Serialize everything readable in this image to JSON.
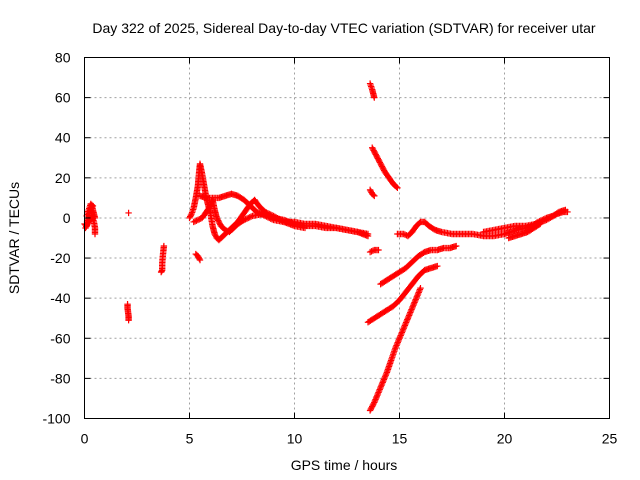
{
  "chart_data": {
    "type": "scatter",
    "title": "Day 322 of 2025, Sidereal Day-to-day VTEC variation (SDTVAR) for receiver utar",
    "xlabel": "GPS time / hours",
    "ylabel": "SDTVAR / TECUs",
    "xlim": [
      0,
      25
    ],
    "ylim": [
      -100,
      80
    ],
    "xticks": [
      0,
      5,
      10,
      15,
      20,
      25
    ],
    "yticks": [
      -100,
      -80,
      -60,
      -40,
      -20,
      0,
      20,
      40,
      60,
      80
    ],
    "grid": true,
    "marker": "+",
    "color": "#ff0000",
    "segments": [
      [
        [
          0.0,
          -3
        ],
        [
          0.1,
          -4
        ],
        [
          0.15,
          -2
        ],
        [
          0.2,
          0
        ],
        [
          0.25,
          3
        ],
        [
          0.3,
          5
        ],
        [
          0.35,
          6
        ],
        [
          0.4,
          4
        ],
        [
          0.45,
          2
        ],
        [
          0.5,
          0
        ]
      ],
      [
        [
          0.05,
          -5
        ],
        [
          0.15,
          -3
        ],
        [
          0.25,
          -1
        ],
        [
          0.35,
          1
        ],
        [
          0.45,
          -2
        ],
        [
          0.5,
          -5
        ],
        [
          0.5,
          -8
        ]
      ],
      [
        [
          0.1,
          1
        ],
        [
          0.2,
          4
        ],
        [
          0.3,
          7
        ],
        [
          0.4,
          6
        ]
      ],
      [
        [
          2.1,
          2.5
        ]
      ],
      [
        [
          2.05,
          -43
        ],
        [
          2.05,
          -45
        ],
        [
          2.1,
          -49
        ],
        [
          2.1,
          -51
        ]
      ],
      [
        [
          3.65,
          -27
        ],
        [
          3.7,
          -26
        ],
        [
          3.7,
          -23
        ],
        [
          3.72,
          -20
        ],
        [
          3.75,
          -17
        ],
        [
          3.78,
          -14
        ]
      ],
      [
        [
          5.0,
          0
        ],
        [
          5.1,
          2
        ],
        [
          5.2,
          5
        ],
        [
          5.3,
          10
        ],
        [
          5.4,
          16
        ],
        [
          5.45,
          22
        ],
        [
          5.5,
          27
        ],
        [
          5.6,
          22
        ],
        [
          5.7,
          16
        ],
        [
          5.8,
          10
        ],
        [
          5.9,
          6
        ],
        [
          6.0,
          2
        ],
        [
          6.1,
          -4
        ],
        [
          6.2,
          -8
        ],
        [
          6.3,
          -10
        ],
        [
          6.4,
          -11
        ],
        [
          6.5,
          -10
        ],
        [
          6.7,
          -8
        ],
        [
          6.9,
          -6
        ],
        [
          7.1,
          -4
        ],
        [
          7.3,
          -2
        ],
        [
          7.5,
          1
        ],
        [
          7.7,
          4
        ],
        [
          7.9,
          7
        ],
        [
          8.1,
          9
        ],
        [
          8.3,
          6
        ],
        [
          8.6,
          3
        ],
        [
          9.0,
          1
        ],
        [
          9.5,
          -2
        ],
        [
          10.0,
          -4
        ],
        [
          10.5,
          -5
        ]
      ],
      [
        [
          5.2,
          -2
        ],
        [
          5.4,
          -1
        ],
        [
          5.6,
          0
        ],
        [
          5.8,
          3
        ],
        [
          6.0,
          6
        ],
        [
          6.1,
          9
        ],
        [
          6.2,
          4
        ],
        [
          6.3,
          0
        ],
        [
          6.5,
          -4
        ],
        [
          6.7,
          -6
        ],
        [
          6.9,
          -7
        ],
        [
          7.1,
          -5
        ],
        [
          7.3,
          -3
        ],
        [
          7.6,
          -1
        ],
        [
          8.0,
          1
        ],
        [
          8.5,
          2
        ],
        [
          9.0,
          0
        ],
        [
          9.5,
          -1
        ],
        [
          10.0,
          -3
        ],
        [
          10.5,
          -4
        ],
        [
          11.0,
          -4
        ],
        [
          11.5,
          -5
        ],
        [
          12.0,
          -5
        ],
        [
          12.5,
          -6
        ],
        [
          13.0,
          -7
        ],
        [
          13.5,
          -8
        ]
      ],
      [
        [
          5.5,
          11
        ],
        [
          5.8,
          10
        ],
        [
          6.1,
          10
        ],
        [
          6.4,
          10
        ],
        [
          6.7,
          11
        ],
        [
          7.0,
          12
        ],
        [
          7.3,
          11
        ],
        [
          7.6,
          9
        ],
        [
          7.9,
          6
        ],
        [
          8.2,
          3
        ],
        [
          8.6,
          1
        ],
        [
          9.0,
          -1
        ],
        [
          9.5,
          -2
        ],
        [
          10.0,
          -2
        ],
        [
          10.5,
          -3
        ],
        [
          11.0,
          -3
        ],
        [
          11.5,
          -4
        ],
        [
          12.0,
          -5
        ],
        [
          12.5,
          -6
        ],
        [
          13.0,
          -7
        ],
        [
          13.5,
          -9
        ]
      ],
      [
        [
          5.3,
          -18
        ],
        [
          5.4,
          -19
        ],
        [
          5.5,
          -21
        ]
      ],
      [
        [
          13.6,
          67
        ],
        [
          13.7,
          64
        ],
        [
          13.8,
          60
        ]
      ],
      [
        [
          13.7,
          35
        ],
        [
          13.9,
          31
        ],
        [
          14.1,
          27
        ],
        [
          14.3,
          23
        ],
        [
          14.5,
          20
        ],
        [
          14.7,
          17
        ],
        [
          14.9,
          15
        ]
      ],
      [
        [
          13.6,
          14
        ],
        [
          13.7,
          12
        ],
        [
          13.8,
          11
        ]
      ],
      [
        [
          13.6,
          -17
        ],
        [
          13.8,
          -16
        ],
        [
          14.0,
          -16
        ]
      ],
      [
        [
          13.5,
          -52
        ],
        [
          13.8,
          -50
        ],
        [
          14.1,
          -48
        ],
        [
          14.4,
          -46
        ],
        [
          14.7,
          -44
        ],
        [
          15.0,
          -41
        ],
        [
          15.3,
          -37
        ],
        [
          15.6,
          -33
        ],
        [
          15.9,
          -29
        ],
        [
          16.2,
          -26
        ],
        [
          16.5,
          -25
        ],
        [
          16.8,
          -24
        ]
      ],
      [
        [
          13.6,
          -96
        ],
        [
          13.8,
          -92
        ],
        [
          14.0,
          -87
        ],
        [
          14.2,
          -82
        ],
        [
          14.4,
          -77
        ],
        [
          14.6,
          -71
        ],
        [
          14.8,
          -65
        ],
        [
          15.0,
          -60
        ],
        [
          15.2,
          -55
        ],
        [
          15.4,
          -50
        ],
        [
          15.6,
          -45
        ],
        [
          15.8,
          -40
        ],
        [
          16.0,
          -35
        ]
      ],
      [
        [
          14.1,
          -33
        ],
        [
          14.4,
          -31
        ],
        [
          14.7,
          -29
        ],
        [
          15.0,
          -27
        ],
        [
          15.3,
          -25
        ],
        [
          15.6,
          -22
        ],
        [
          15.9,
          -19
        ],
        [
          16.2,
          -17
        ],
        [
          16.5,
          -16
        ],
        [
          16.8,
          -16
        ],
        [
          17.1,
          -15
        ],
        [
          17.4,
          -15
        ],
        [
          17.7,
          -14
        ]
      ],
      [
        [
          14.9,
          -8
        ],
        [
          15.2,
          -8
        ],
        [
          15.4,
          -9
        ],
        [
          15.6,
          -7
        ],
        [
          15.8,
          -4
        ],
        [
          16.0,
          -2
        ],
        [
          16.2,
          -2
        ],
        [
          16.4,
          -4
        ],
        [
          16.7,
          -6
        ],
        [
          17.0,
          -7
        ],
        [
          17.5,
          -8
        ],
        [
          18.0,
          -8
        ],
        [
          18.5,
          -8
        ],
        [
          19.0,
          -9
        ],
        [
          19.5,
          -9
        ],
        [
          20.0,
          -8
        ],
        [
          20.3,
          -7
        ],
        [
          20.6,
          -6
        ],
        [
          21.0,
          -5
        ],
        [
          21.3,
          -4
        ],
        [
          21.6,
          -2
        ],
        [
          22.0,
          0
        ],
        [
          22.3,
          1
        ],
        [
          22.6,
          3
        ],
        [
          22.9,
          4
        ]
      ],
      [
        [
          19.0,
          -7
        ],
        [
          19.5,
          -6
        ],
        [
          20.0,
          -5
        ],
        [
          20.5,
          -4
        ],
        [
          21.0,
          -4
        ],
        [
          21.5,
          -3
        ],
        [
          22.0,
          -1
        ],
        [
          22.5,
          2
        ],
        [
          22.8,
          3
        ],
        [
          23.0,
          3
        ]
      ],
      [
        [
          20.2,
          -10
        ],
        [
          20.5,
          -9
        ],
        [
          20.8,
          -8
        ],
        [
          21.1,
          -7
        ],
        [
          21.4,
          -5
        ],
        [
          21.7,
          -3
        ]
      ]
    ]
  }
}
